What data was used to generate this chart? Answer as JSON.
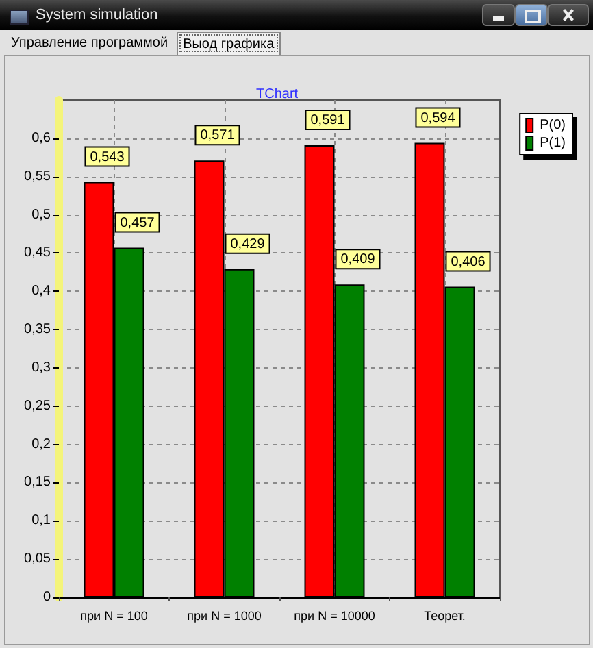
{
  "chart_data": {
    "type": "bar",
    "title": "TChart",
    "annotations": [
      "System simulation",
      "Управление программой",
      "Выод графика"
    ],
    "categories": [
      "при N = 100",
      "при N = 1000",
      "при N = 10000",
      "Теорет."
    ],
    "series": [
      {
        "name": "P(0)",
        "color": "#ff0000",
        "values": [
          0.543,
          0.571,
          0.591,
          0.594
        ],
        "value_labels": [
          "0,543",
          "0,571",
          "0,591",
          "0,594"
        ]
      },
      {
        "name": "P(1)",
        "color": "#008000",
        "values": [
          0.457,
          0.429,
          0.409,
          0.406
        ],
        "value_labels": [
          "0,457",
          "0,429",
          "0,409",
          "0,406"
        ]
      }
    ],
    "ylim": [
      0,
      0.65
    ],
    "yticks": [
      0,
      {
        "value": 0.05,
        "label": "0,05"
      },
      {
        "value": 0.1,
        "label": "0,1"
      },
      {
        "value": 0.15,
        "label": "0,15"
      },
      {
        "value": 0.2,
        "label": "0,2"
      },
      {
        "value": 0.25,
        "label": "0,25"
      },
      {
        "value": 0.3,
        "label": "0,3"
      },
      {
        "value": 0.35,
        "label": "0,35"
      },
      {
        "value": 0.4,
        "label": "0,4"
      },
      {
        "value": 0.45,
        "label": "0,45"
      },
      {
        "value": 0.5,
        "label": "0,5"
      },
      {
        "value": 0.55,
        "label": "0,55"
      },
      {
        "value": 0.6,
        "label": "0,6"
      }
    ],
    "grid": true,
    "legend": "top right"
  }
}
